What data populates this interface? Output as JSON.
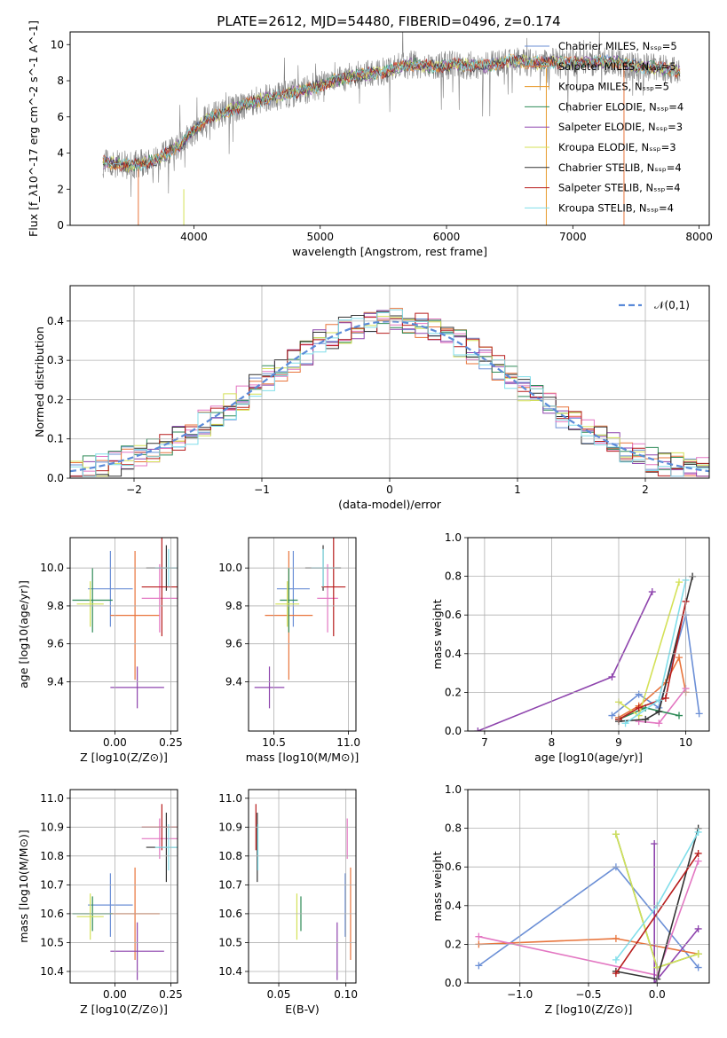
{
  "figure_title": "PLATE=2612, MJD=54480, FIBERID=0496, z=0.174",
  "chart_data": [
    {
      "id": "spectrum",
      "type": "line",
      "xlabel": "wavelength [Angstrom, rest frame]",
      "ylabel": "Flux [f_λ10^-17 erg cm^-2 s^-1 A^-1]",
      "xlim": [
        3020,
        8080
      ],
      "ylim": [
        0,
        10.7
      ],
      "xticks": [
        4000,
        5000,
        6000,
        7000,
        8000
      ],
      "yticks": [
        0,
        2,
        4,
        6,
        8,
        10
      ],
      "grid": false,
      "legend_position": "top-right",
      "data_color": "#808080",
      "series": [
        {
          "name": "Chabrier MILES, N_SSP=5",
          "color": "#6b8fd6"
        },
        {
          "name": "Salpeter MILES, N_SSP=5",
          "color": "#e8743b"
        },
        {
          "name": "Kroupa MILES, N_SSP=5",
          "color": "#e89a2b"
        },
        {
          "name": "Chabrier ELODIE, N_SSP=4",
          "color": "#2e8b57"
        },
        {
          "name": "Salpeter ELODIE, N_SSP=3",
          "color": "#8e44ad"
        },
        {
          "name": "Kroupa ELODIE, N_SSP=3",
          "color": "#d4e157"
        },
        {
          "name": "Chabrier STELIB, N_SSP=4",
          "color": "#333333"
        },
        {
          "name": "Salpeter STELIB, N_SSP=4",
          "color": "#b71c1c"
        },
        {
          "name": "Kroupa STELIB, N_SSP=4",
          "color": "#80deea"
        }
      ],
      "continuum": {
        "x": [
          3280,
          3500,
          3700,
          3900,
          4100,
          4300,
          4500,
          4700,
          4900,
          5100,
          5300,
          5500,
          5700,
          5900,
          6100,
          6300,
          6500,
          6700,
          6900,
          7100,
          7300,
          7500,
          7700,
          7850
        ],
        "y": [
          3.5,
          3.3,
          3.6,
          4.5,
          5.9,
          6.4,
          6.9,
          7.2,
          7.5,
          8.0,
          8.3,
          8.5,
          8.9,
          8.8,
          8.9,
          8.8,
          9.1,
          9.0,
          9.0,
          9.0,
          9.1,
          8.8,
          8.7,
          8.5
        ]
      }
    },
    {
      "id": "residuals",
      "type": "line",
      "xlabel": "(data-model)/error",
      "ylabel": "Normed distribution",
      "xlim": [
        -2.5,
        2.5
      ],
      "ylim": [
        0,
        0.49
      ],
      "xticks": [
        -2,
        -1,
        0,
        1,
        2
      ],
      "yticks": [
        0.0,
        0.1,
        0.2,
        0.3,
        0.4
      ],
      "grid": true,
      "legend_position": "top-right",
      "series": [
        {
          "name": "N(0,1)",
          "color": "#5b8bd9",
          "style": "dashed",
          "mu": 0,
          "sigma": 1
        }
      ]
    },
    {
      "id": "age-vs-Z",
      "type": "scatter",
      "xlabel": "Z [log10(Z/Z⊙)]",
      "ylabel": "age  [log10(age/yr)]",
      "xlim": [
        -0.2,
        0.28
      ],
      "ylim": [
        9.14,
        10.16
      ],
      "xticks": [
        0.0,
        0.25
      ],
      "yticks": [
        9.4,
        9.6,
        9.8,
        10.0
      ],
      "grid": true,
      "points": [
        {
          "x": -0.02,
          "y": 9.89,
          "xerr": 0.1,
          "yerr": 0.2,
          "color": "#6b8fd6"
        },
        {
          "x": 0.09,
          "y": 9.75,
          "xerr": 0.11,
          "yerr": 0.34,
          "color": "#e8743b"
        },
        {
          "x": 0.2,
          "y": 9.84,
          "xerr": 0.08,
          "yerr": 0.18,
          "color": "#e377c2"
        },
        {
          "x": -0.1,
          "y": 9.83,
          "xerr": 0.09,
          "yerr": 0.17,
          "color": "#2e8b57"
        },
        {
          "x": 0.1,
          "y": 9.37,
          "xerr": 0.12,
          "yerr": 0.11,
          "color": "#8e44ad"
        },
        {
          "x": -0.11,
          "y": 9.81,
          "xerr": 0.06,
          "yerr": 0.12,
          "color": "#d4e157"
        },
        {
          "x": 0.23,
          "y": 10.0,
          "xerr": 0.09,
          "yerr": 0.12,
          "color": "#333333"
        },
        {
          "x": 0.21,
          "y": 9.9,
          "xerr": 0.09,
          "yerr": 0.26,
          "color": "#b71c1c"
        },
        {
          "x": 0.24,
          "y": 10.0,
          "xerr": 0.06,
          "yerr": 0.1,
          "color": "#80deea"
        }
      ]
    },
    {
      "id": "age-vs-mass",
      "type": "scatter",
      "xlabel": "mass [log10(M/M⊙)]",
      "ylabel": "",
      "xlim": [
        10.33,
        11.05
      ],
      "ylim": [
        9.14,
        10.16
      ],
      "xticks": [
        10.5,
        11.0
      ],
      "yticks": [
        9.4,
        9.6,
        9.8,
        10.0
      ],
      "grid": true,
      "points": [
        {
          "x": 10.63,
          "y": 9.89,
          "xerr": 0.11,
          "yerr": 0.2,
          "color": "#6b8fd6"
        },
        {
          "x": 10.6,
          "y": 9.75,
          "xerr": 0.16,
          "yerr": 0.34,
          "color": "#e8743b"
        },
        {
          "x": 10.86,
          "y": 9.84,
          "xerr": 0.07,
          "yerr": 0.18,
          "color": "#e377c2"
        },
        {
          "x": 10.6,
          "y": 9.83,
          "xerr": 0.06,
          "yerr": 0.17,
          "color": "#2e8b57"
        },
        {
          "x": 10.47,
          "y": 9.37,
          "xerr": 0.1,
          "yerr": 0.11,
          "color": "#8e44ad"
        },
        {
          "x": 10.59,
          "y": 9.81,
          "xerr": 0.08,
          "yerr": 0.12,
          "color": "#d4e157"
        },
        {
          "x": 10.83,
          "y": 10.0,
          "xerr": 0.12,
          "yerr": 0.12,
          "color": "#333333"
        },
        {
          "x": 10.9,
          "y": 9.9,
          "xerr": 0.08,
          "yerr": 0.26,
          "color": "#b71c1c"
        },
        {
          "x": 10.83,
          "y": 10.0,
          "xerr": 0.08,
          "yerr": 0.1,
          "color": "#80deea"
        }
      ]
    },
    {
      "id": "mass-weight-vs-age",
      "type": "line",
      "xlabel": "age  [log10(age/yr)]",
      "ylabel": "mass weight",
      "xlim": [
        6.75,
        10.35
      ],
      "ylim": [
        0,
        1
      ],
      "xticks": [
        7,
        8,
        9,
        10
      ],
      "yticks": [
        0.0,
        0.2,
        0.4,
        0.6,
        0.8,
        1.0
      ],
      "grid": true,
      "series": [
        {
          "color": "#6b8fd6",
          "x": [
            8.9,
            9.3,
            9.6,
            10.0,
            10.2
          ],
          "y": [
            0.08,
            0.19,
            0.12,
            0.6,
            0.09
          ]
        },
        {
          "color": "#e8743b",
          "x": [
            9.0,
            9.3,
            9.7,
            9.9,
            10.0
          ],
          "y": [
            0.07,
            0.13,
            0.25,
            0.38,
            0.2
          ]
        },
        {
          "color": "#e377c2",
          "x": [
            9.3,
            9.6,
            10.0
          ],
          "y": [
            0.05,
            0.04,
            0.22
          ]
        },
        {
          "color": "#2e8b57",
          "x": [
            9.0,
            9.4,
            9.9
          ],
          "y": [
            0.06,
            0.12,
            0.08
          ]
        },
        {
          "color": "#8e44ad",
          "x": [
            6.9,
            8.9,
            9.5
          ],
          "y": [
            0.0,
            0.28,
            0.72
          ]
        },
        {
          "color": "#d4e157",
          "x": [
            9.0,
            9.3,
            9.9
          ],
          "y": [
            0.15,
            0.08,
            0.77
          ]
        },
        {
          "color": "#333333",
          "x": [
            9.0,
            9.4,
            9.6,
            10.1
          ],
          "y": [
            0.05,
            0.06,
            0.1,
            0.8
          ]
        },
        {
          "color": "#b71c1c",
          "x": [
            9.0,
            9.3,
            9.7,
            10.0
          ],
          "y": [
            0.06,
            0.12,
            0.17,
            0.67
          ]
        },
        {
          "color": "#80deea",
          "x": [
            9.1,
            9.6,
            10.0
          ],
          "y": [
            0.04,
            0.16,
            0.78
          ]
        }
      ]
    },
    {
      "id": "mass-vs-Z",
      "type": "scatter",
      "xlabel": "Z [log10(Z/Z⊙)]",
      "ylabel": "mass [log10(M/M⊙)]",
      "xlim": [
        -0.2,
        0.28
      ],
      "ylim": [
        10.36,
        11.03
      ],
      "xticks": [
        0.0,
        0.25
      ],
      "yticks": [
        10.4,
        10.5,
        10.6,
        10.7,
        10.8,
        10.9,
        11.0
      ],
      "grid": true,
      "points": [
        {
          "x": -0.02,
          "y": 10.63,
          "xerr": 0.1,
          "yerr": 0.11,
          "color": "#6b8fd6"
        },
        {
          "x": 0.09,
          "y": 10.6,
          "xerr": 0.11,
          "yerr": 0.16,
          "color": "#e8743b"
        },
        {
          "x": 0.2,
          "y": 10.86,
          "xerr": 0.08,
          "yerr": 0.07,
          "color": "#e377c2"
        },
        {
          "x": -0.1,
          "y": 10.6,
          "xerr": 0.09,
          "yerr": 0.06,
          "color": "#2e8b57"
        },
        {
          "x": 0.1,
          "y": 10.47,
          "xerr": 0.12,
          "yerr": 0.1,
          "color": "#8e44ad"
        },
        {
          "x": -0.11,
          "y": 10.59,
          "xerr": 0.06,
          "yerr": 0.08,
          "color": "#d4e157"
        },
        {
          "x": 0.23,
          "y": 10.83,
          "xerr": 0.09,
          "yerr": 0.12,
          "color": "#333333"
        },
        {
          "x": 0.21,
          "y": 10.9,
          "xerr": 0.09,
          "yerr": 0.08,
          "color": "#b71c1c"
        },
        {
          "x": 0.24,
          "y": 10.83,
          "xerr": 0.06,
          "yerr": 0.08,
          "color": "#80deea"
        }
      ]
    },
    {
      "id": "mass-vs-ebv",
      "type": "scatter",
      "xlabel": "E(B-V)",
      "ylabel": "",
      "xlim": [
        0.0275,
        0.1075
      ],
      "ylim": [
        10.36,
        11.03
      ],
      "xticks": [
        0.05,
        0.1
      ],
      "yticks": [
        10.4,
        10.5,
        10.6,
        10.7,
        10.8,
        10.9,
        11.0
      ],
      "grid": true,
      "points": [
        {
          "x": 0.0995,
          "y": 10.63,
          "yerr": 0.11,
          "color": "#6b8fd6"
        },
        {
          "x": 0.1035,
          "y": 10.6,
          "yerr": 0.16,
          "color": "#e8743b"
        },
        {
          "x": 0.101,
          "y": 10.86,
          "yerr": 0.07,
          "color": "#e377c2"
        },
        {
          "x": 0.0665,
          "y": 10.6,
          "yerr": 0.06,
          "color": "#2e8b57"
        },
        {
          "x": 0.0935,
          "y": 10.47,
          "yerr": 0.1,
          "color": "#8e44ad"
        },
        {
          "x": 0.0635,
          "y": 10.59,
          "yerr": 0.08,
          "color": "#d4e157"
        },
        {
          "x": 0.034,
          "y": 10.83,
          "yerr": 0.12,
          "color": "#333333"
        },
        {
          "x": 0.033,
          "y": 10.9,
          "yerr": 0.08,
          "color": "#b71c1c"
        },
        {
          "x": 0.0345,
          "y": 10.83,
          "yerr": 0.08,
          "color": "#80deea"
        }
      ]
    },
    {
      "id": "mass-weight-vs-Z",
      "type": "line",
      "xlabel": "Z [log10(Z/Z⊙)]",
      "ylabel": "mass weight",
      "xlim": [
        -1.38,
        0.38
      ],
      "ylim": [
        0,
        1
      ],
      "xticks": [
        -1.0,
        -0.5,
        0.0
      ],
      "yticks": [
        0.0,
        0.2,
        0.4,
        0.6,
        0.8,
        1.0
      ],
      "grid": true,
      "series": [
        {
          "color": "#6b8fd6",
          "x": [
            -1.3,
            -0.3,
            0.3
          ],
          "y": [
            0.09,
            0.6,
            0.08
          ]
        },
        {
          "color": "#e8743b",
          "x": [
            -1.3,
            -0.3,
            0.3
          ],
          "y": [
            0.2,
            0.23,
            0.15
          ]
        },
        {
          "color": "#e377c2",
          "x": [
            -1.3,
            0.0,
            0.3
          ],
          "y": [
            0.24,
            0.04,
            0.63
          ]
        },
        {
          "color": "#2e8b57",
          "x": [
            -0.3,
            0.0,
            0.3
          ],
          "y": [
            0.77,
            0.08,
            0.15
          ]
        },
        {
          "color": "#8e44ad",
          "x": [
            -0.02,
            -0.02,
            0.3
          ],
          "y": [
            0.72,
            0.0,
            0.28
          ]
        },
        {
          "color": "#d4e157",
          "x": [
            -0.3,
            0.0,
            0.3
          ],
          "y": [
            0.77,
            0.08,
            0.15
          ]
        },
        {
          "color": "#333333",
          "x": [
            -0.3,
            0.0,
            0.3
          ],
          "y": [
            0.06,
            0.02,
            0.8
          ]
        },
        {
          "color": "#b71c1c",
          "x": [
            -0.3,
            0.3
          ],
          "y": [
            0.05,
            0.67
          ]
        },
        {
          "color": "#80deea",
          "x": [
            -0.3,
            0.0,
            0.3
          ],
          "y": [
            0.12,
            0.4,
            0.78
          ]
        }
      ]
    }
  ]
}
